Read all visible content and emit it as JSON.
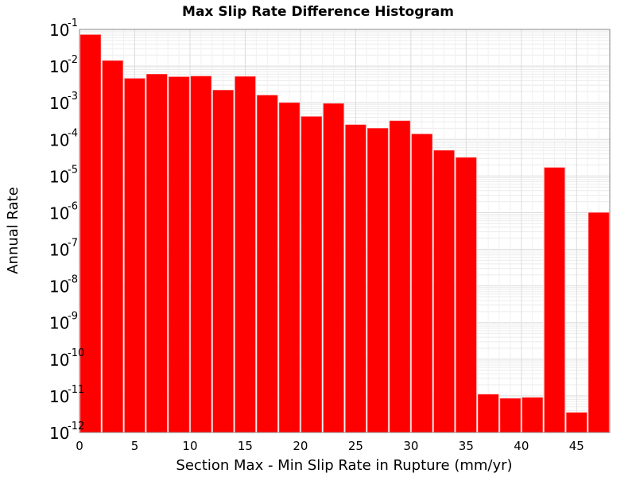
{
  "chart_data": {
    "type": "bar",
    "title": "Max Slip Rate Difference Histogram",
    "xlabel": "Section Max - Min Slip Rate in Rupture (mm/yr)",
    "ylabel": "Annual Rate",
    "xlim": [
      0,
      48
    ],
    "ylim": [
      1e-12,
      0.1
    ],
    "yscale": "log",
    "bin_width": 2,
    "grid": true,
    "bar_color": "#ff0000",
    "x_ticks": [
      "0",
      "5",
      "10",
      "15",
      "20",
      "25",
      "30",
      "35",
      "40",
      "45"
    ],
    "y_ticks": [
      {
        "base": "10",
        "exp": "-1"
      },
      {
        "base": "10",
        "exp": "-2"
      },
      {
        "base": "10",
        "exp": "-3"
      },
      {
        "base": "10",
        "exp": "-4"
      },
      {
        "base": "10",
        "exp": "-5"
      },
      {
        "base": "10",
        "exp": "-6"
      },
      {
        "base": "10",
        "exp": "-7"
      },
      {
        "base": "10",
        "exp": "-8"
      },
      {
        "base": "10",
        "exp": "-9"
      },
      {
        "base": "10",
        "exp": "-10"
      },
      {
        "base": "10",
        "exp": "-11"
      },
      {
        "base": "10",
        "exp": "-12"
      }
    ],
    "x": [
      1,
      3,
      5,
      7,
      9,
      11,
      13,
      15,
      17,
      19,
      21,
      23,
      25,
      27,
      29,
      31,
      33,
      35,
      37,
      39,
      41,
      43,
      45,
      47
    ],
    "values": [
      0.072,
      0.014,
      0.0046,
      0.006,
      0.0051,
      0.0053,
      0.0022,
      0.0052,
      0.0016,
      0.001,
      0.00042,
      0.00095,
      0.00025,
      0.0002,
      0.00032,
      0.00014,
      5e-05,
      3.2e-05,
      1.1e-11,
      8.5e-12,
      9e-12,
      1.7e-05,
      3.5e-12,
      1e-06
    ]
  }
}
